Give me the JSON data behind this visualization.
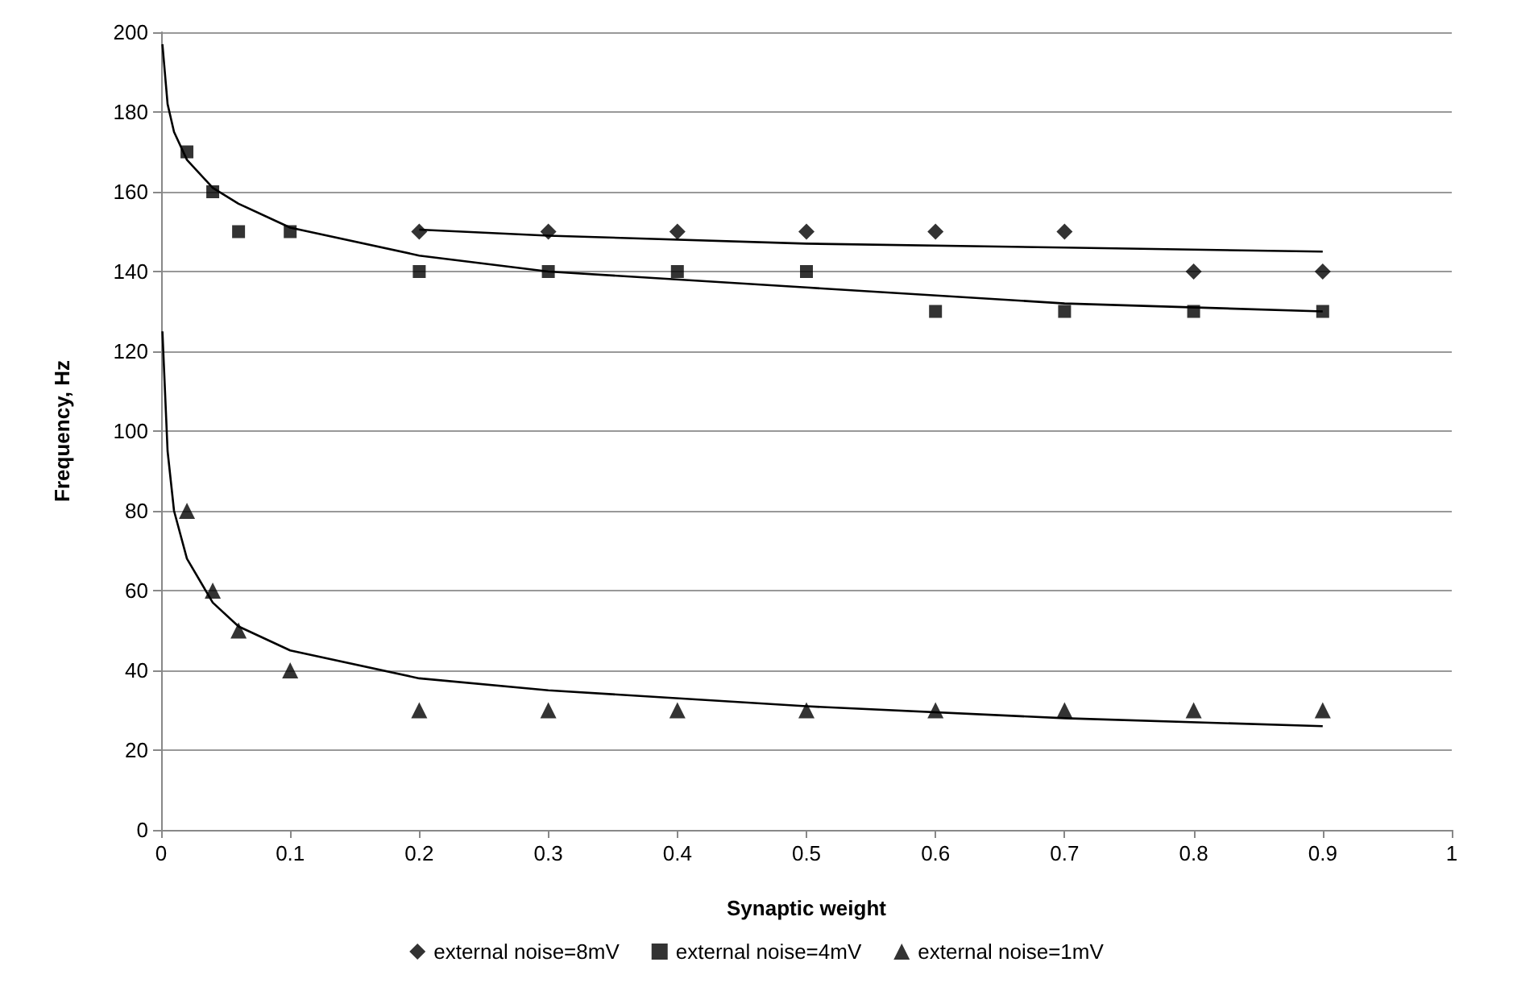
{
  "chart_data": {
    "type": "scatter",
    "xlabel": "Synaptic weight",
    "ylabel": "Frequency, Hz",
    "xlim": [
      0,
      1
    ],
    "xticks": [
      0,
      0.1,
      0.2,
      0.3,
      0.4,
      0.5,
      0.6,
      0.7,
      0.8,
      0.9,
      1
    ],
    "ylim": [
      0,
      200
    ],
    "yticks": [
      0,
      20,
      40,
      60,
      80,
      100,
      120,
      140,
      160,
      180,
      200
    ],
    "grid": "y",
    "legend": "bottom",
    "series": [
      {
        "name": "external noise=8mV",
        "color": "#000000",
        "marker": "diamond",
        "x": [
          0.2,
          0.3,
          0.4,
          0.5,
          0.6,
          0.7,
          0.8,
          0.9
        ],
        "values": [
          150,
          150,
          150,
          150,
          150,
          150,
          140,
          140
        ]
      },
      {
        "name": "external noise=4mV",
        "color": "#000000",
        "marker": "square",
        "x": [
          0.02,
          0.04,
          0.06,
          0.1,
          0.2,
          0.3,
          0.4,
          0.5,
          0.6,
          0.7,
          0.8,
          0.9
        ],
        "values": [
          170,
          160,
          150,
          150,
          140,
          140,
          140,
          140,
          130,
          130,
          130,
          130
        ]
      },
      {
        "name": "external noise=1mV",
        "color": "#000000",
        "marker": "triangle",
        "x": [
          0.02,
          0.04,
          0.06,
          0.1,
          0.2,
          0.3,
          0.4,
          0.5,
          0.6,
          0.7,
          0.8,
          0.9
        ],
        "values": [
          80,
          60,
          50,
          40,
          30,
          30,
          30,
          30,
          30,
          30,
          30,
          30
        ]
      },
      {
        "type": "line",
        "color": "#000000",
        "marker": "none",
        "x": [
          0.2,
          0.3,
          0.5,
          0.7,
          0.9
        ],
        "values": [
          150.5,
          149,
          147,
          146,
          145
        ]
      },
      {
        "type": "line",
        "color": "#000000",
        "marker": "none",
        "x": [
          0.001,
          0.005,
          0.01,
          0.02,
          0.04,
          0.06,
          0.1,
          0.2,
          0.3,
          0.5,
          0.7,
          0.9
        ],
        "values": [
          197,
          182,
          175,
          168,
          161,
          157,
          151,
          144,
          140,
          136,
          132,
          130
        ]
      },
      {
        "type": "line",
        "color": "#000000",
        "marker": "none",
        "x": [
          0.001,
          0.005,
          0.01,
          0.02,
          0.04,
          0.06,
          0.1,
          0.2,
          0.3,
          0.5,
          0.7,
          0.9
        ],
        "values": [
          125,
          95,
          80,
          68,
          57,
          51,
          45,
          38,
          35,
          31,
          28,
          26
        ]
      }
    ]
  }
}
